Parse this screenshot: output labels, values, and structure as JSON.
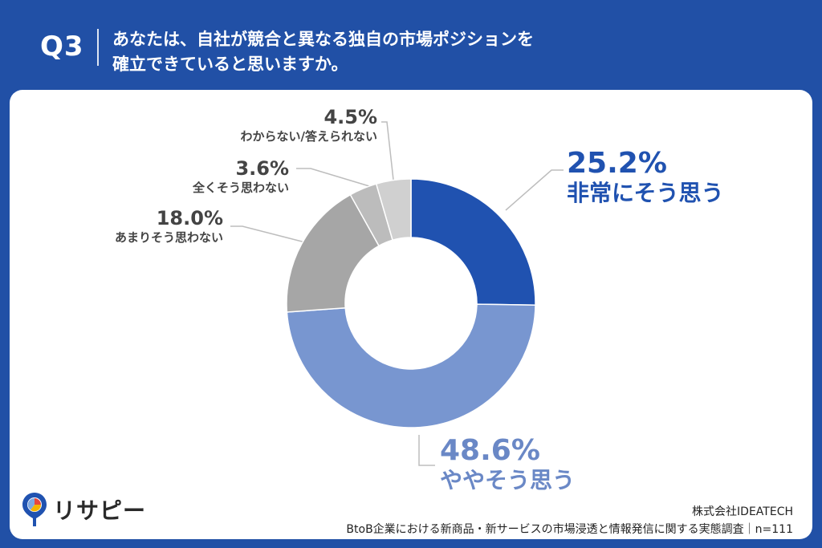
{
  "header": {
    "question_number": "Q3",
    "question_line1": "あなたは、自社が競合と異なる独自の市場ポジションを",
    "question_line2": "確立できていると思いますか。"
  },
  "chart_data": {
    "type": "pie",
    "donut": true,
    "start_angle": "12 o'clock, clockwise",
    "slices": [
      {
        "label": "非常にそう思う",
        "value": 25.2,
        "value_label": "25.2%",
        "color": "#2052b0"
      },
      {
        "label": "ややそう思う",
        "value": 48.6,
        "value_label": "48.6%",
        "color": "#7896d0"
      },
      {
        "label": "あまりそう思わない",
        "value": 18.0,
        "value_label": "18.0%",
        "color": "#a6a6a6"
      },
      {
        "label": "全くそう思わない",
        "value": 3.6,
        "value_label": "3.6%",
        "color": "#bcbcbc"
      },
      {
        "label": "わからない/答えられない",
        "value": 4.5,
        "value_label": "4.5%",
        "color": "#d0d0d0"
      }
    ]
  },
  "footer": {
    "logo_text": "リサピー",
    "company": "株式会社IDEATECH",
    "survey": "BtoB企業における新商品・新サービスの市場浸透と情報発信に関する実態調査｜n=111"
  }
}
